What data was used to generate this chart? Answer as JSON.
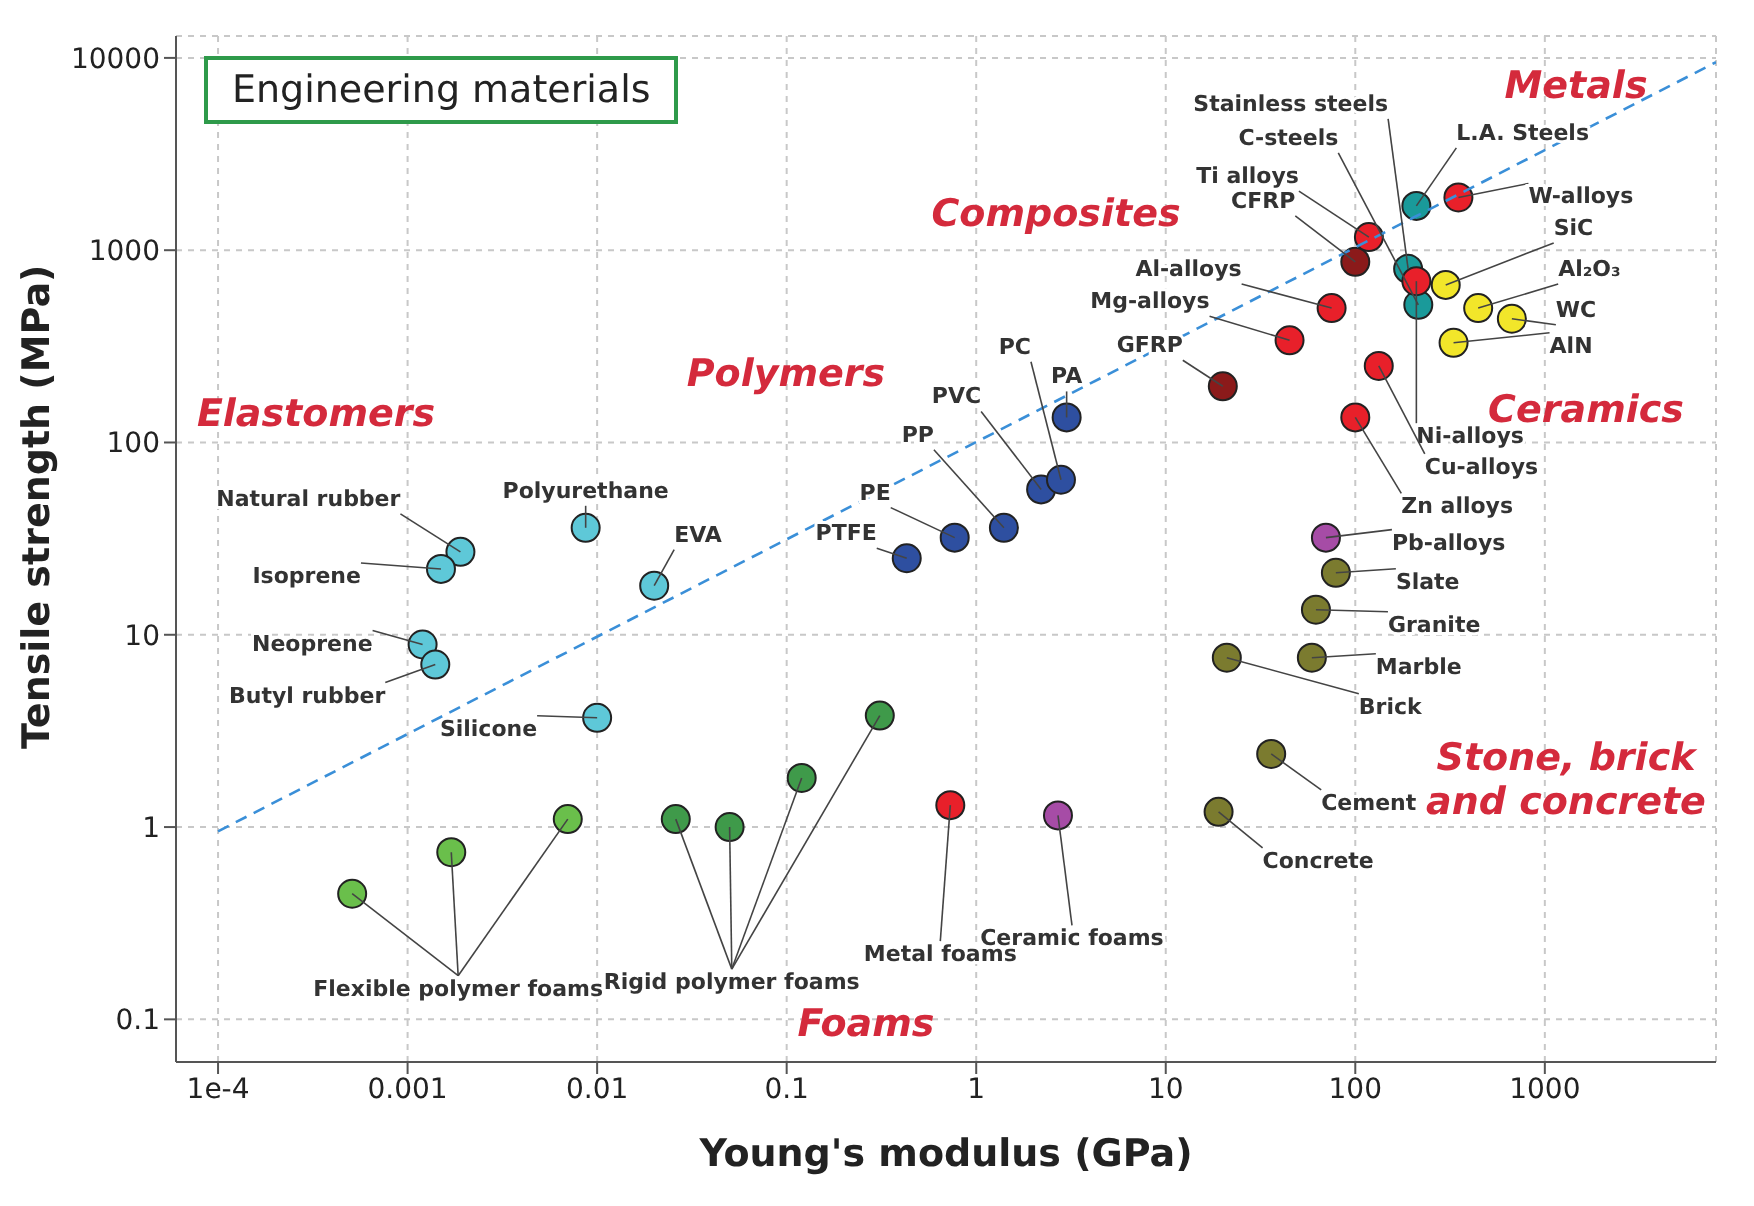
{
  "chart_data": {
    "type": "scatter",
    "title": "Engineering materials",
    "xlabel": "Young's modulus (GPa)",
    "ylabel": "Tensile strength (MPa)",
    "log": "xy",
    "grid": true,
    "marker": "circle",
    "xlim": [
      6e-05,
      8000
    ],
    "xticks": [
      {
        "value": 0.0001,
        "label": "1e-4"
      },
      0.001,
      0.01,
      0.1,
      1,
      10,
      100,
      1000
    ],
    "ylim": [
      0.06,
      13000
    ],
    "yticks": [
      0.1,
      1,
      10,
      100,
      1000,
      10000
    ],
    "annotations": [
      "Elastomers",
      "Polymers",
      "Composites",
      "Metals",
      "Ceramics",
      "Stone, brick and concrete",
      "Foams"
    ],
    "series": [
      {
        "name": "Polyurethane",
        "color": "#5ec8d8",
        "x": [
          0.0087
        ],
        "values": [
          36
        ]
      },
      {
        "name": "Natural rubber",
        "color": "#5ec8d8",
        "x": [
          0.0019
        ],
        "values": [
          27
        ]
      },
      {
        "name": "Isoprene",
        "color": "#5ec8d8",
        "x": [
          0.0015
        ],
        "values": [
          22
        ]
      },
      {
        "name": "Neoprene",
        "color": "#5ec8d8",
        "x": [
          0.0012
        ],
        "values": [
          8.9
        ]
      },
      {
        "name": "Butyl rubber",
        "color": "#5ec8d8",
        "x": [
          0.0014
        ],
        "values": [
          7
        ]
      },
      {
        "name": "Silicone",
        "color": "#5ec8d8",
        "x": [
          0.01
        ],
        "values": [
          3.7
        ]
      },
      {
        "name": "EVA",
        "color": "#5ec8d8",
        "x": [
          0.02
        ],
        "values": [
          18
        ]
      },
      {
        "name": "PTFE",
        "color": "#2e4fa0",
        "x": [
          0.43
        ],
        "values": [
          25
        ]
      },
      {
        "name": "PE",
        "color": "#2e4fa0",
        "x": [
          0.77
        ],
        "values": [
          32
        ]
      },
      {
        "name": "PP",
        "color": "#2e4fa0",
        "x": [
          1.4
        ],
        "values": [
          36
        ]
      },
      {
        "name": "PVC",
        "color": "#2e4fa0",
        "x": [
          2.2
        ],
        "values": [
          57
        ]
      },
      {
        "name": "PC",
        "color": "#2e4fa0",
        "x": [
          2.8
        ],
        "values": [
          64
        ]
      },
      {
        "name": "PA",
        "color": "#2e4fa0",
        "x": [
          3
        ],
        "values": [
          135
        ]
      },
      {
        "name": "CFRP",
        "color": "#8b1a1a",
        "x": [
          100
        ],
        "values": [
          870
        ]
      },
      {
        "name": "GFRP",
        "color": "#8b1a1a",
        "x": [
          20
        ],
        "values": [
          196
        ]
      },
      {
        "name": "L.A. Steels",
        "color": "#1a9a9a",
        "x": [
          210
        ],
        "values": [
          1700
        ]
      },
      {
        "name": "Stainless steels",
        "color": "#1a9a9a",
        "x": [
          190
        ],
        "values": [
          800
        ]
      },
      {
        "name": "C-steels",
        "color": "#1a9a9a",
        "x": [
          215
        ],
        "values": [
          520
        ]
      },
      {
        "name": "Ti alloys",
        "color": "#e8202a",
        "x": [
          118
        ],
        "values": [
          1170
        ]
      },
      {
        "name": "W-alloys",
        "color": "#e8202a",
        "x": [
          350
        ],
        "values": [
          1880
        ]
      },
      {
        "name": "Al-alloys",
        "color": "#e8202a",
        "x": [
          75
        ],
        "values": [
          500
        ]
      },
      {
        "name": "Mg-alloys",
        "color": "#e8202a",
        "x": [
          45
        ],
        "values": [
          340
        ]
      },
      {
        "name": "Ni-alloys",
        "color": "#e8202a",
        "x": [
          210
        ],
        "values": [
          690
        ]
      },
      {
        "name": "Cu-alloys",
        "color": "#e8202a",
        "x": [
          133
        ],
        "values": [
          250
        ]
      },
      {
        "name": "Zn alloys",
        "color": "#e8202a",
        "x": [
          100
        ],
        "values": [
          135
        ]
      },
      {
        "name": "Pb-alloys",
        "color": "#a64ca6",
        "x": [
          70
        ],
        "values": [
          32
        ]
      },
      {
        "name": "SiC",
        "color": "#f2e62a",
        "x": [
          300
        ],
        "values": [
          660
        ]
      },
      {
        "name": "Al₂O₃",
        "color": "#f2e62a",
        "x": [
          445
        ],
        "values": [
          500
        ]
      },
      {
        "name": "WC",
        "color": "#f2e62a",
        "x": [
          670
        ],
        "values": [
          440
        ]
      },
      {
        "name": "AlN",
        "color": "#f2e62a",
        "x": [
          330
        ],
        "values": [
          330
        ]
      },
      {
        "name": "Slate",
        "color": "#7b7b2f",
        "x": [
          79
        ],
        "values": [
          21
        ]
      },
      {
        "name": "Granite",
        "color": "#7b7b2f",
        "x": [
          62
        ],
        "values": [
          13.5
        ]
      },
      {
        "name": "Marble",
        "color": "#7b7b2f",
        "x": [
          59
        ],
        "values": [
          7.6
        ]
      },
      {
        "name": "Brick",
        "color": "#7b7b2f",
        "x": [
          21
        ],
        "values": [
          7.6
        ]
      },
      {
        "name": "Cement",
        "color": "#7b7b2f",
        "x": [
          36
        ],
        "values": [
          2.4
        ]
      },
      {
        "name": "Concrete",
        "color": "#7b7b2f",
        "x": [
          19
        ],
        "values": [
          1.2
        ]
      },
      {
        "name": "Flexible polymer foams",
        "color": "#6abf4b",
        "x": [
          0.00051,
          0.0017,
          0.007
        ],
        "values": [
          0.45,
          0.74,
          1.1
        ]
      },
      {
        "name": "Rigid polymer foams",
        "color": "#3f9a4a",
        "x": [
          0.026,
          0.05,
          0.12,
          0.31
        ],
        "values": [
          1.1,
          1.0,
          1.8,
          3.8
        ]
      },
      {
        "name": "Metal foams",
        "color": "#e8202a",
        "x": [
          0.73
        ],
        "values": [
          1.3
        ]
      },
      {
        "name": "Ceramic foams",
        "color": "#a64ca6",
        "x": [
          2.7
        ],
        "values": [
          1.15
        ]
      },
      {
        "type": "line",
        "color": "#3a8fd8",
        "line_style": "dashed",
        "marker": "none",
        "x": [
          0.0001,
          8000
        ],
        "values": [
          0.95,
          9500
        ]
      }
    ]
  }
}
